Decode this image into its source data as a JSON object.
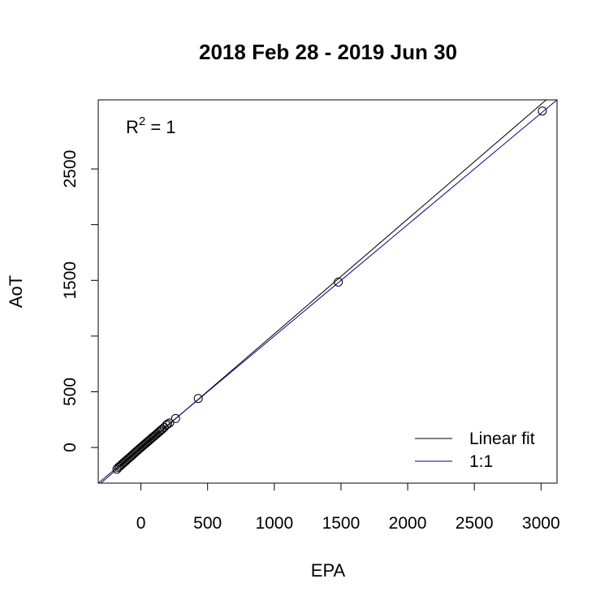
{
  "chart_data": {
    "type": "scatter",
    "title": "2018 Feb 28 - 2019 Jun 30",
    "xlabel": "EPA",
    "ylabel": "AoT",
    "xlim": [
      -320,
      3120
    ],
    "ylim": [
      -320,
      3120
    ],
    "x_ticks": [
      0,
      500,
      1000,
      1500,
      2000,
      2500,
      3000
    ],
    "y_ticks": [
      0,
      500,
      1500,
      2500
    ],
    "grid": false,
    "annotation": {
      "text": "R",
      "sup": "2",
      "rest": " = 1"
    },
    "legend": {
      "position": "bottom-right",
      "entries": [
        {
          "label": "Linear fit",
          "color": "#000000"
        },
        {
          "label": "1:1",
          "color": "#00008b"
        }
      ]
    },
    "lines": [
      {
        "name": "Linear fit",
        "intercept": -10,
        "slope": 1.03,
        "color": "#000000"
      },
      {
        "name": "1:1",
        "intercept": 0,
        "slope": 1,
        "color": "#00008b"
      }
    ],
    "points": [
      {
        "x": -180,
        "y": -195
      },
      {
        "x": -170,
        "y": -180
      },
      {
        "x": -160,
        "y": -170
      },
      {
        "x": -150,
        "y": -160
      },
      {
        "x": -140,
        "y": -148
      },
      {
        "x": -130,
        "y": -138
      },
      {
        "x": -120,
        "y": -128
      },
      {
        "x": -110,
        "y": -117
      },
      {
        "x": -100,
        "y": -106
      },
      {
        "x": -90,
        "y": -96
      },
      {
        "x": -80,
        "y": -85
      },
      {
        "x": -70,
        "y": -75
      },
      {
        "x": -60,
        "y": -64
      },
      {
        "x": -50,
        "y": -53
      },
      {
        "x": -40,
        "y": -42
      },
      {
        "x": -30,
        "y": -31
      },
      {
        "x": -20,
        "y": -21
      },
      {
        "x": -10,
        "y": -10
      },
      {
        "x": 0,
        "y": 0
      },
      {
        "x": 10,
        "y": 10
      },
      {
        "x": 20,
        "y": 21
      },
      {
        "x": 30,
        "y": 31
      },
      {
        "x": 40,
        "y": 41
      },
      {
        "x": 50,
        "y": 52
      },
      {
        "x": 60,
        "y": 62
      },
      {
        "x": 70,
        "y": 72
      },
      {
        "x": 80,
        "y": 83
      },
      {
        "x": 90,
        "y": 93
      },
      {
        "x": 100,
        "y": 103
      },
      {
        "x": 110,
        "y": 113
      },
      {
        "x": 120,
        "y": 124
      },
      {
        "x": 130,
        "y": 134
      },
      {
        "x": 140,
        "y": 144
      },
      {
        "x": 150,
        "y": 155
      },
      {
        "x": 160,
        "y": 165
      },
      {
        "x": 175,
        "y": 180
      },
      {
        "x": 190,
        "y": 200
      },
      {
        "x": 200,
        "y": 210
      },
      {
        "x": 215,
        "y": 220
      },
      {
        "x": 260,
        "y": 260
      },
      {
        "x": 430,
        "y": 440
      },
      {
        "x": 1480,
        "y": 1485
      },
      {
        "x": 3010,
        "y": 3020
      }
    ]
  }
}
